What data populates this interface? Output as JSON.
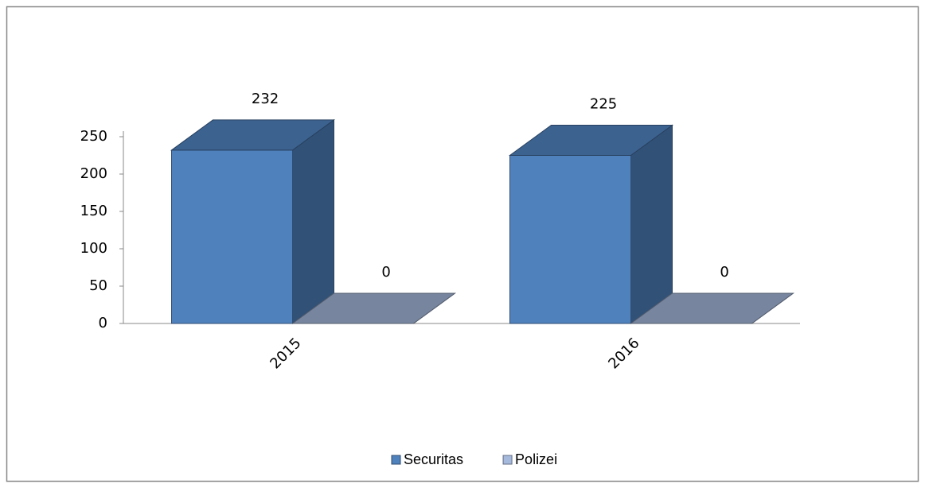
{
  "chart_data": {
    "type": "bar3d",
    "categories": [
      "2015",
      "2016"
    ],
    "series": [
      {
        "name": "Securitas",
        "color": "#4f81bd",
        "values": [
          232,
          225
        ]
      },
      {
        "name": "Polizei",
        "color": "#a5b9dc",
        "values": [
          0,
          0
        ]
      }
    ],
    "ylim": [
      0,
      250
    ],
    "yticks": [
      0,
      50,
      100,
      150,
      200,
      250
    ],
    "grid": false,
    "legend": "bottom"
  }
}
